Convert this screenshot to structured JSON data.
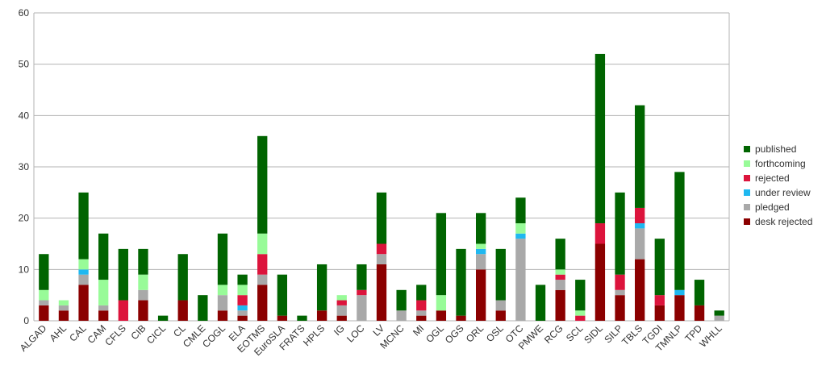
{
  "chart_data": {
    "type": "bar",
    "stacked": true,
    "title": "",
    "xlabel": "",
    "ylabel": "",
    "ylim": [
      0,
      60
    ],
    "yticks": [
      0,
      10,
      20,
      30,
      40,
      50,
      60
    ],
    "grid": true,
    "legend_position": "right",
    "categories": [
      "ALGAD",
      "AHL",
      "CAL",
      "CAM",
      "CFLS",
      "CIB",
      "CICL",
      "CL",
      "CMLE",
      "COGL",
      "ELA",
      "EOTMS",
      "EuroSLA",
      "FRATS",
      "HPLS",
      "IG",
      "LOC",
      "LV",
      "MCNC",
      "MI",
      "OGL",
      "OGS",
      "ORL",
      "OSL",
      "OTC",
      "PMWE",
      "RCG",
      "SCL",
      "SIDL",
      "SILP",
      "TBLS",
      "TGDI",
      "TMNLP",
      "TPD",
      "WHLL"
    ],
    "series": [
      {
        "name": "desk rejected",
        "color": "#8b0000",
        "values": [
          3,
          2,
          7,
          2,
          0,
          4,
          0,
          4,
          0,
          2,
          1,
          7,
          1,
          0,
          2,
          1,
          0,
          11,
          0,
          1,
          2,
          1,
          10,
          2,
          0,
          0,
          6,
          0,
          15,
          5,
          12,
          3,
          5,
          3,
          0
        ]
      },
      {
        "name": "pledged",
        "color": "#a9a9a9",
        "values": [
          1,
          1,
          2,
          1,
          0,
          2,
          0,
          0,
          0,
          3,
          1,
          2,
          0,
          0,
          0,
          2,
          5,
          2,
          2,
          1,
          0,
          0,
          3,
          2,
          16,
          0,
          2,
          0,
          0,
          1,
          6,
          0,
          0,
          0,
          1
        ]
      },
      {
        "name": "under review",
        "color": "#1fb8f0",
        "values": [
          0,
          0,
          1,
          0,
          0,
          0,
          0,
          0,
          0,
          0,
          1,
          0,
          0,
          0,
          0,
          0,
          0,
          0,
          0,
          0,
          0,
          0,
          1,
          0,
          1,
          0,
          0,
          0,
          0,
          0,
          1,
          0,
          1,
          0,
          0
        ]
      },
      {
        "name": "rejected",
        "color": "#dc143c",
        "values": [
          0,
          0,
          0,
          0,
          4,
          0,
          0,
          0,
          0,
          0,
          2,
          4,
          0,
          0,
          0,
          1,
          1,
          2,
          0,
          2,
          0,
          0,
          0,
          0,
          0,
          0,
          1,
          1,
          4,
          3,
          3,
          2,
          0,
          0,
          0
        ]
      },
      {
        "name": "forthcoming",
        "color": "#98fb98",
        "values": [
          2,
          1,
          2,
          5,
          0,
          3,
          0,
          0,
          0,
          2,
          2,
          4,
          0,
          0,
          0,
          1,
          0,
          0,
          0,
          0,
          3,
          0,
          1,
          0,
          2,
          0,
          1,
          1,
          0,
          0,
          0,
          0,
          0,
          0,
          0
        ]
      },
      {
        "name": "published",
        "color": "#006400",
        "values": [
          7,
          0,
          13,
          9,
          10,
          5,
          1,
          9,
          5,
          10,
          2,
          19,
          8,
          1,
          9,
          0,
          5,
          10,
          4,
          3,
          16,
          13,
          6,
          10,
          5,
          7,
          6,
          6,
          33,
          16,
          20,
          11,
          23,
          5,
          1
        ]
      }
    ],
    "legend_order": [
      "published",
      "forthcoming",
      "rejected",
      "under review",
      "pledged",
      "desk rejected"
    ]
  }
}
